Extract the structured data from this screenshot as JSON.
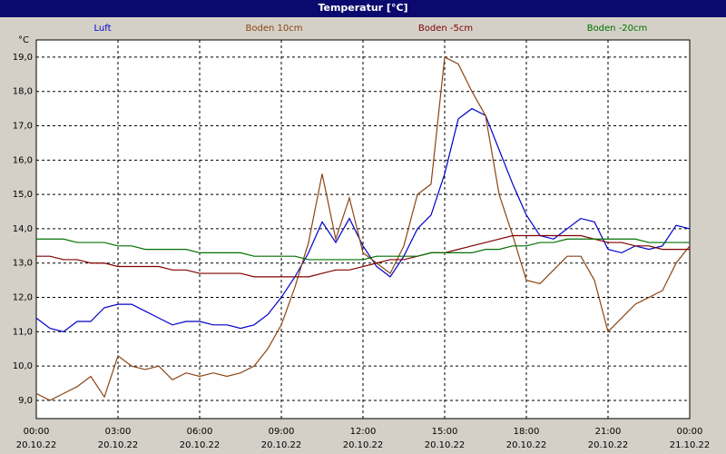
{
  "chart_data": {
    "type": "line",
    "title": "Temperatur [°C]",
    "y_unit": "°C",
    "x": [
      0,
      0.5,
      1,
      1.5,
      2,
      2.5,
      3,
      3.5,
      4,
      4.5,
      5,
      5.5,
      6,
      6.5,
      7,
      7.5,
      8,
      8.5,
      9,
      9.5,
      10,
      10.5,
      11,
      11.5,
      12,
      12.5,
      13,
      13.5,
      14,
      14.5,
      15,
      15.5,
      16,
      16.5,
      17,
      17.5,
      18,
      18.5,
      19,
      19.5,
      20,
      20.5,
      21,
      21.5,
      22,
      22.5,
      23,
      23.5,
      24
    ],
    "xlim": [
      0,
      24
    ],
    "xticks": [
      {
        "value": 0,
        "label": "00:00",
        "date": "20.10.22"
      },
      {
        "value": 3,
        "label": "03:00",
        "date": "20.10.22"
      },
      {
        "value": 6,
        "label": "06:00",
        "date": "20.10.22"
      },
      {
        "value": 9,
        "label": "09:00",
        "date": "20.10.22"
      },
      {
        "value": 12,
        "label": "12:00",
        "date": "20.10.22"
      },
      {
        "value": 15,
        "label": "15:00",
        "date": "20.10.22"
      },
      {
        "value": 18,
        "label": "18:00",
        "date": "20.10.22"
      },
      {
        "value": 21,
        "label": "21:00",
        "date": "20.10.22"
      },
      {
        "value": 24,
        "label": "00:00",
        "date": "21.10.22"
      }
    ],
    "ylim": [
      8.47,
      19.5
    ],
    "yticks": [
      {
        "value": 9,
        "label": "9,0"
      },
      {
        "value": 10,
        "label": "10,0"
      },
      {
        "value": 11,
        "label": "11,0"
      },
      {
        "value": 12,
        "label": "12,0"
      },
      {
        "value": 13,
        "label": "13,0"
      },
      {
        "value": 14,
        "label": "14,0"
      },
      {
        "value": 15,
        "label": "15,0"
      },
      {
        "value": 16,
        "label": "16,0"
      },
      {
        "value": 17,
        "label": "17,0"
      },
      {
        "value": 18,
        "label": "18,0"
      },
      {
        "value": 19,
        "label": "19,0"
      }
    ],
    "grid": true,
    "series": [
      {
        "name": "Luft",
        "color": "#0000cc",
        "values": [
          11.4,
          11.1,
          11.0,
          11.3,
          11.3,
          11.7,
          11.8,
          11.8,
          11.6,
          11.4,
          11.2,
          11.3,
          11.3,
          11.2,
          11.2,
          11.1,
          11.2,
          11.5,
          12.0,
          12.6,
          13.3,
          14.2,
          13.6,
          14.3,
          13.5,
          12.9,
          12.6,
          13.2,
          14.0,
          14.4,
          15.6,
          17.2,
          17.5,
          17.3,
          16.3,
          15.3,
          14.4,
          13.8,
          13.7,
          14.0,
          14.3,
          14.2,
          13.4,
          13.3,
          13.5,
          13.4,
          13.5,
          14.1,
          14.0
        ]
      },
      {
        "name": "Boden 10cm",
        "color": "#8b4513",
        "values": [
          9.2,
          9.0,
          9.2,
          9.4,
          9.7,
          9.1,
          10.3,
          10.0,
          9.9,
          10.0,
          9.6,
          9.8,
          9.7,
          9.8,
          9.7,
          9.8,
          10.0,
          10.5,
          11.2,
          12.3,
          13.6,
          15.6,
          13.7,
          14.9,
          13.3,
          13.0,
          12.7,
          13.5,
          15.0,
          15.3,
          19.0,
          18.8,
          18.0,
          17.3,
          15.0,
          13.8,
          12.5,
          12.4,
          12.8,
          13.2,
          13.2,
          12.5,
          11.0,
          11.4,
          11.8,
          12.0,
          12.2,
          13.0,
          13.5
        ]
      },
      {
        "name": "Boden -5cm",
        "color": "#800000",
        "values": [
          13.2,
          13.2,
          13.1,
          13.1,
          13.0,
          13.0,
          12.9,
          12.9,
          12.9,
          12.9,
          12.8,
          12.8,
          12.7,
          12.7,
          12.7,
          12.7,
          12.6,
          12.6,
          12.6,
          12.6,
          12.6,
          12.7,
          12.8,
          12.8,
          12.9,
          13.0,
          13.1,
          13.1,
          13.2,
          13.3,
          13.3,
          13.4,
          13.5,
          13.6,
          13.7,
          13.8,
          13.8,
          13.8,
          13.8,
          13.8,
          13.8,
          13.7,
          13.6,
          13.6,
          13.5,
          13.5,
          13.4,
          13.4,
          13.4
        ]
      },
      {
        "name": "Boden -20cm",
        "color": "#007000",
        "values": [
          13.7,
          13.7,
          13.7,
          13.6,
          13.6,
          13.6,
          13.5,
          13.5,
          13.4,
          13.4,
          13.4,
          13.4,
          13.3,
          13.3,
          13.3,
          13.3,
          13.2,
          13.2,
          13.2,
          13.2,
          13.1,
          13.1,
          13.1,
          13.1,
          13.1,
          13.2,
          13.2,
          13.2,
          13.2,
          13.3,
          13.3,
          13.3,
          13.3,
          13.4,
          13.4,
          13.5,
          13.5,
          13.6,
          13.6,
          13.7,
          13.7,
          13.7,
          13.7,
          13.7,
          13.7,
          13.6,
          13.6,
          13.6,
          13.6
        ]
      }
    ]
  }
}
